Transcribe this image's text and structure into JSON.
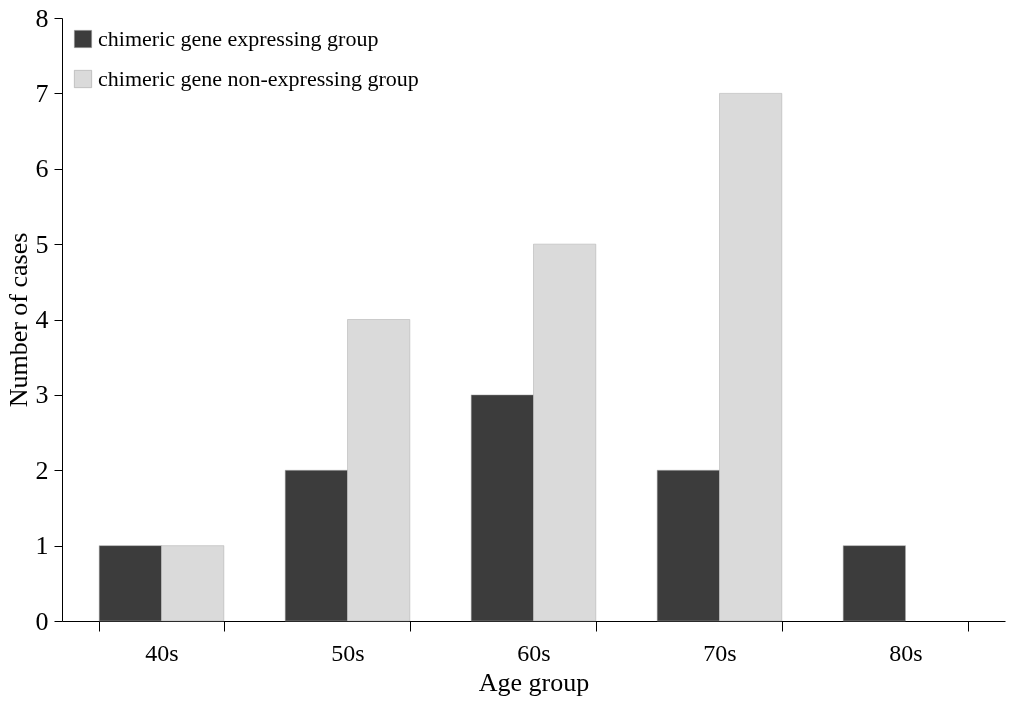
{
  "chart_data": {
    "type": "bar",
    "xlabel": "Age   group",
    "ylabel": "Number of cases",
    "categories": [
      "40s",
      "50s",
      "60s",
      "70s",
      "80s"
    ],
    "series": [
      {
        "name": "chimeric gene expressing group",
        "color": "#3c3c3c",
        "values": [
          1,
          2,
          3,
          2,
          1
        ]
      },
      {
        "name": "chimeric gene non-expressing group",
        "color": "#dadada",
        "values": [
          1,
          4,
          5,
          7,
          null
        ]
      }
    ],
    "ylim": [
      0,
      8
    ],
    "yticks": [
      0,
      1,
      2,
      3,
      4,
      5,
      6,
      7,
      8
    ],
    "grid": false,
    "legend": "top left"
  }
}
